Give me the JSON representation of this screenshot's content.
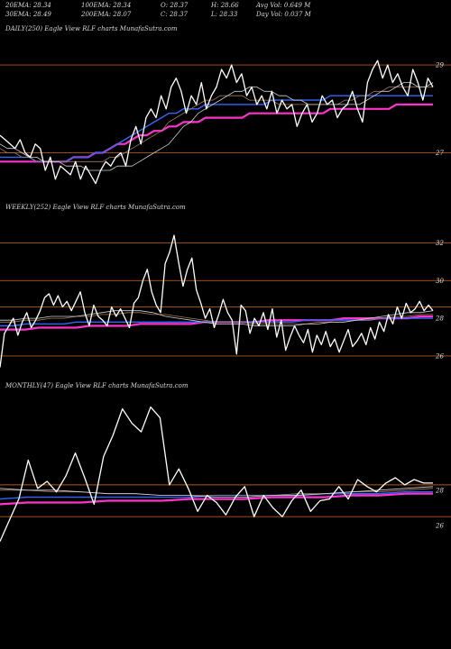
{
  "stats": {
    "row1": [
      "20EMA: 28.34",
      "100EMA: 28.34",
      "O: 28.37",
      "H: 28.66",
      "Avg Vol: 0.649 M"
    ],
    "row2": [
      "30EMA: 28.49",
      "200EMA: 28.07",
      "C: 28.37",
      "L: 28.33",
      "Day Vol: 0.037 M"
    ]
  },
  "colors": {
    "price": "#ffffff",
    "ema_fast": "#cfcfcf",
    "ema_mid": "#a07a5a",
    "ema_blue": "#3366ff",
    "ema_magenta": "#ff33cc",
    "hline": "#b5561e"
  },
  "chart_data": [
    {
      "type": "line",
      "panel": "daily",
      "title": "DAILY(250) Eagle  View  RLF charts MunafaSutra.com",
      "yticks": [
        29,
        27
      ],
      "hlines": [
        29,
        27
      ],
      "ylim": [
        25.8,
        29.7
      ],
      "series": [
        {
          "name": "price",
          "values": [
            27.4,
            27.3,
            27.2,
            27.1,
            27.3,
            27.0,
            26.9,
            27.2,
            27.1,
            26.6,
            26.9,
            26.4,
            26.7,
            26.6,
            26.5,
            26.8,
            26.4,
            26.7,
            26.5,
            26.3,
            26.6,
            26.8,
            26.7,
            26.9,
            27.0,
            26.7,
            27.3,
            27.6,
            27.2,
            27.8,
            28.0,
            27.8,
            28.3,
            28.0,
            28.5,
            28.7,
            28.4,
            27.9,
            28.3,
            28.1,
            28.6,
            28.0,
            28.3,
            28.5,
            28.9,
            28.7,
            29.0,
            28.6,
            28.8,
            28.3,
            28.5,
            28.1,
            28.3,
            28.0,
            28.4,
            27.9,
            28.2,
            28.0,
            28.1,
            27.6,
            27.9,
            28.1,
            27.7,
            27.9,
            28.3,
            28.1,
            28.2,
            27.8,
            28.0,
            28.1,
            28.4,
            28.0,
            27.7,
            28.6,
            28.9,
            29.1,
            28.7,
            29.0,
            28.6,
            28.8,
            28.5,
            28.3,
            28.9,
            28.6,
            28.2,
            28.7,
            28.5
          ]
        },
        {
          "name": "ema20",
          "values": [
            27.2,
            27.1,
            27.1,
            27.0,
            26.9,
            26.9,
            26.8,
            26.8,
            26.8,
            26.7,
            26.7,
            26.7,
            26.6,
            26.6,
            26.6,
            26.6,
            26.7,
            26.7,
            26.7,
            26.8,
            26.9,
            27.0,
            27.1,
            27.2,
            27.4,
            27.6,
            27.7,
            27.9,
            28.0,
            28.1,
            28.2,
            28.3,
            28.4,
            28.4,
            28.5,
            28.5,
            28.4,
            28.4,
            28.3,
            28.3,
            28.2,
            28.2,
            28.1,
            28.1,
            28.1,
            28.1,
            28.1,
            28.1,
            28.1,
            28.1,
            28.2,
            28.3,
            28.4,
            28.4,
            28.5,
            28.6,
            28.6,
            28.5,
            28.5,
            28.6
          ]
        },
        {
          "name": "ema30",
          "values": [
            27.1,
            27.0,
            27.0,
            26.9,
            26.9,
            26.8,
            26.8,
            26.8,
            26.8,
            26.8,
            26.8,
            26.8,
            26.8,
            26.8,
            26.8,
            26.9,
            26.9,
            27.0,
            27.1,
            27.2,
            27.3,
            27.4,
            27.5,
            27.7,
            27.8,
            27.9,
            28.0,
            28.1,
            28.2,
            28.2,
            28.3,
            28.3,
            28.3,
            28.3,
            28.2,
            28.2,
            28.2,
            28.2,
            28.1,
            28.1,
            28.1,
            28.1,
            28.1,
            28.1,
            28.1,
            28.1,
            28.1,
            28.2,
            28.2,
            28.3,
            28.3,
            28.4,
            28.4,
            28.5,
            28.5,
            28.5,
            28.5,
            28.5,
            28.5,
            28.5
          ]
        },
        {
          "name": "ema100",
          "values": [
            26.9,
            26.9,
            26.9,
            26.9,
            26.9,
            26.8,
            26.8,
            26.8,
            26.8,
            26.8,
            26.9,
            26.9,
            26.9,
            27.0,
            27.0,
            27.1,
            27.2,
            27.3,
            27.4,
            27.5,
            27.6,
            27.7,
            27.8,
            27.9,
            27.9,
            28.0,
            28.0,
            28.0,
            28.1,
            28.1,
            28.1,
            28.1,
            28.1,
            28.1,
            28.1,
            28.1,
            28.1,
            28.2,
            28.2,
            28.2,
            28.2,
            28.2,
            28.2,
            28.2,
            28.2,
            28.3,
            28.3,
            28.3,
            28.3,
            28.3,
            28.3,
            28.3,
            28.3,
            28.3,
            28.3,
            28.3,
            28.3,
            28.3,
            28.3,
            28.3
          ]
        },
        {
          "name": "ema200",
          "values": [
            26.8,
            26.8,
            26.8,
            26.8,
            26.8,
            26.8,
            26.8,
            26.8,
            26.8,
            26.8,
            26.9,
            26.9,
            26.9,
            27.0,
            27.0,
            27.1,
            27.2,
            27.2,
            27.3,
            27.4,
            27.4,
            27.5,
            27.5,
            27.6,
            27.6,
            27.7,
            27.7,
            27.7,
            27.8,
            27.8,
            27.8,
            27.8,
            27.8,
            27.8,
            27.9,
            27.9,
            27.9,
            27.9,
            27.9,
            27.9,
            27.9,
            27.9,
            27.9,
            27.9,
            27.9,
            28.0,
            28.0,
            28.0,
            28.0,
            28.0,
            28.0,
            28.0,
            28.0,
            28.0,
            28.1,
            28.1,
            28.1,
            28.1,
            28.1,
            28.1
          ]
        }
      ]
    },
    {
      "type": "line",
      "panel": "weekly",
      "title": "WEEKLY(252) Eagle  View  RLF charts MunafaSutra.com",
      "yticks": [
        32,
        30,
        28,
        26
      ],
      "hlines": [
        32,
        30,
        28.6,
        26
      ],
      "ylim": [
        24.8,
        33.6
      ],
      "series": [
        {
          "name": "price",
          "values": [
            25.4,
            27.2,
            27.6,
            28.0,
            27.1,
            27.8,
            28.3,
            27.5,
            27.9,
            28.4,
            29.1,
            29.3,
            28.7,
            29.2,
            28.6,
            28.9,
            28.4,
            28.9,
            29.4,
            28.3,
            27.6,
            28.7,
            28.1,
            27.9,
            27.6,
            28.6,
            28.1,
            28.5,
            28.0,
            27.5,
            28.8,
            29.1,
            30.0,
            30.6,
            29.4,
            28.7,
            28.3,
            30.9,
            31.5,
            32.4,
            31.0,
            29.7,
            30.6,
            31.2,
            29.5,
            28.8,
            28.0,
            28.5,
            27.5,
            28.2,
            29.0,
            28.3,
            27.9,
            26.1,
            28.7,
            28.4,
            27.2,
            28.0,
            27.6,
            28.3,
            27.4,
            28.5,
            27.0,
            27.9,
            26.3,
            27.0,
            27.6,
            27.1,
            26.7,
            27.4,
            26.2,
            27.1,
            26.6,
            27.3,
            26.5,
            26.9,
            26.2,
            26.8,
            27.4,
            26.5,
            26.8,
            27.2,
            26.6,
            27.5,
            26.9,
            27.8,
            27.3,
            28.2,
            27.7,
            28.6,
            28.0,
            28.8,
            28.3,
            28.5,
            28.9,
            28.4,
            28.7,
            28.4
          ]
        },
        {
          "name": "ema20",
          "values": [
            27.9,
            27.9,
            28.0,
            28.0,
            28.1,
            28.1,
            28.1,
            28.2,
            28.3,
            28.4,
            28.4,
            28.4,
            28.3,
            28.1,
            28.0,
            27.9,
            27.8,
            27.7,
            27.7,
            27.7,
            27.6,
            27.6,
            27.6,
            27.6,
            27.7,
            27.7,
            27.8,
            27.8,
            27.9,
            28.0,
            28.1,
            28.2,
            28.3,
            28.3,
            28.4
          ]
        },
        {
          "name": "ema30",
          "values": [
            27.8,
            27.8,
            27.9,
            27.9,
            28.0,
            28.0,
            28.1,
            28.1,
            28.2,
            28.2,
            28.3,
            28.3,
            28.2,
            28.2,
            28.1,
            28.0,
            27.9,
            27.8,
            27.8,
            27.8,
            27.7,
            27.7,
            27.7,
            27.7,
            27.7,
            27.8,
            27.8,
            27.8,
            27.9,
            27.9,
            28.0,
            28.1,
            28.1,
            28.2,
            28.2
          ]
        },
        {
          "name": "ema100",
          "values": [
            27.6,
            27.6,
            27.7,
            27.7,
            27.7,
            27.7,
            27.8,
            27.8,
            27.8,
            27.8,
            27.8,
            27.8,
            27.8,
            27.8,
            27.8,
            27.8,
            27.8,
            27.8,
            27.8,
            27.8,
            27.8,
            27.8,
            27.8,
            27.8,
            27.9,
            27.9,
            27.9,
            27.9,
            27.9,
            27.9,
            28.0,
            28.0,
            28.0,
            28.0,
            28.0
          ]
        },
        {
          "name": "ema200",
          "values": [
            27.4,
            27.4,
            27.4,
            27.5,
            27.5,
            27.5,
            27.5,
            27.6,
            27.6,
            27.6,
            27.6,
            27.7,
            27.7,
            27.7,
            27.7,
            27.7,
            27.8,
            27.8,
            27.8,
            27.8,
            27.8,
            27.9,
            27.9,
            27.9,
            27.9,
            27.9,
            27.9,
            28.0,
            28.0,
            28.0,
            28.0,
            28.0,
            28.0,
            28.1,
            28.1
          ]
        }
      ]
    },
    {
      "type": "line",
      "panel": "monthly",
      "title": "MONTHLY(47) Eagle  View  RLF charts MunafaSutra.com",
      "yticks": [
        28,
        26
      ],
      "hlines": [
        28.3,
        26.5
      ],
      "ylim": [
        23.6,
        33.6
      ],
      "series": [
        {
          "name": "price",
          "values": [
            25.1,
            26.3,
            27.5,
            29.7,
            28.1,
            28.5,
            27.9,
            28.8,
            30.1,
            28.7,
            27.2,
            29.9,
            31.1,
            32.6,
            31.8,
            31.3,
            32.7,
            32.1,
            28.3,
            29.2,
            28.1,
            26.8,
            27.7,
            27.3,
            26.6,
            27.6,
            28.2,
            26.5,
            27.7,
            27.0,
            26.5,
            27.4,
            28.0,
            26.8,
            27.4,
            27.5,
            28.2,
            27.5,
            28.6,
            28.2,
            27.9,
            28.4,
            28.7,
            28.3,
            28.6,
            28.4,
            28.4
          ]
        },
        {
          "name": "ema20",
          "values": [
            28.1,
            28.0,
            28.0,
            27.9,
            27.8,
            27.8,
            27.7,
            27.7,
            27.6,
            27.6,
            27.7,
            27.7,
            27.8,
            27.9,
            28.0,
            28.1,
            28.2
          ]
        },
        {
          "name": "ema30",
          "values": [
            28.0,
            28.0,
            27.9,
            27.9,
            27.8,
            27.8,
            27.7,
            27.7,
            27.7,
            27.7,
            27.7,
            27.8,
            27.8,
            27.9,
            27.9,
            28.0,
            28.1
          ]
        },
        {
          "name": "ema100",
          "values": [
            27.5,
            27.6,
            27.6,
            27.6,
            27.6,
            27.6,
            27.6,
            27.6,
            27.7,
            27.7,
            27.7,
            27.7,
            27.8,
            27.8,
            27.8,
            27.9,
            27.9
          ]
        },
        {
          "name": "ema200",
          "values": [
            27.2,
            27.3,
            27.3,
            27.3,
            27.4,
            27.4,
            27.4,
            27.5,
            27.5,
            27.5,
            27.6,
            27.6,
            27.6,
            27.7,
            27.7,
            27.8,
            27.8
          ]
        }
      ]
    }
  ]
}
